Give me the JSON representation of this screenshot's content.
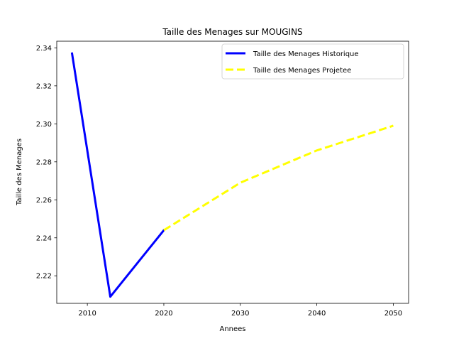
{
  "chart_data": {
    "type": "line",
    "title": "Taille des Menages sur MOUGINS",
    "xlabel": "Annees",
    "ylabel": "Taille des Menages",
    "xlim": [
      2006,
      2052
    ],
    "ylim": [
      2.2055,
      2.3435
    ],
    "x_ticks": [
      2010,
      2020,
      2030,
      2040,
      2050
    ],
    "x_tick_labels": [
      "2010",
      "2020",
      "2030",
      "2040",
      "2050"
    ],
    "y_ticks": [
      2.22,
      2.24,
      2.26,
      2.28,
      2.3,
      2.32,
      2.34
    ],
    "y_tick_labels": [
      "2.22",
      "2.24",
      "2.26",
      "2.28",
      "2.30",
      "2.32",
      "2.34"
    ],
    "grid": false,
    "legend_position": "top-right",
    "series": [
      {
        "name": "Taille des Menages Historique",
        "color": "#0000ff",
        "style": "solid",
        "x": [
          2008,
          2013,
          2020
        ],
        "y": [
          2.337,
          2.209,
          2.244
        ]
      },
      {
        "name": "Taille des Menages Projetee",
        "color": "#ffff00",
        "style": "dashed",
        "x": [
          2020,
          2030,
          2040,
          2050
        ],
        "y": [
          2.244,
          2.269,
          2.286,
          2.299
        ]
      }
    ]
  }
}
